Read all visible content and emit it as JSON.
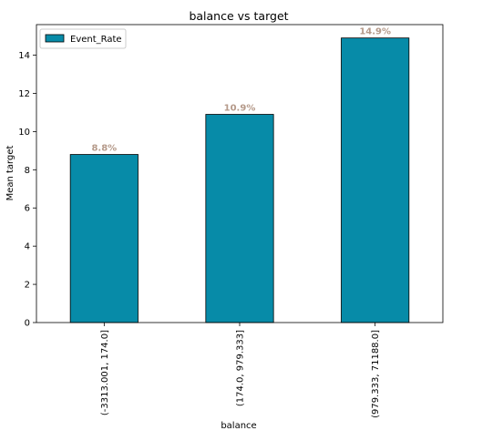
{
  "chart_data": {
    "type": "bar",
    "title": "balance vs target",
    "xlabel": "balance",
    "ylabel": "Mean target",
    "categories": [
      "(-3313.001, 174.0]",
      "(174.0, 979.333]",
      "(979.333, 71188.0]"
    ],
    "series": [
      {
        "name": "Event_Rate",
        "values": [
          8.8,
          10.9,
          14.9
        ],
        "color": "#078BA8"
      }
    ],
    "data_labels": [
      "8.8%",
      "10.9%",
      "14.9%"
    ],
    "data_label_color": "#B59A8A",
    "ylim": [
      0,
      15.6
    ],
    "yticks": [
      0,
      2,
      4,
      6,
      8,
      10,
      12,
      14
    ],
    "grid": false,
    "legend_position": "top-left"
  }
}
